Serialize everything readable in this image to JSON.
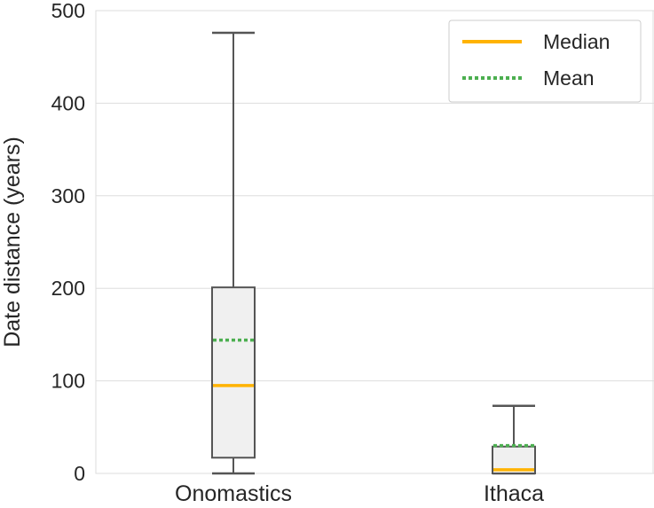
{
  "chart_data": {
    "type": "box",
    "title": "",
    "xlabel": "",
    "ylabel": "Date distance (years)",
    "ylim": [
      0,
      500
    ],
    "yticks": [
      "0",
      "100",
      "200",
      "300",
      "400",
      "500"
    ],
    "grid": true,
    "legend_position": "top-right",
    "legend": [
      {
        "label": "Median",
        "style": "solid",
        "color": "#FFB300"
      },
      {
        "label": "Mean",
        "style": "dotted",
        "color": "#4CAF50"
      }
    ],
    "categories": [
      "Onomastics",
      "Ithaca"
    ],
    "boxes": [
      {
        "name": "Onomastics",
        "min": 0,
        "q1": 17,
        "median": 95,
        "mean": 144,
        "q3": 201,
        "max": 476
      },
      {
        "name": "Ithaca",
        "min": 0,
        "q1": 0,
        "median": 4,
        "mean": 30,
        "q3": 29,
        "max": 73
      }
    ],
    "colors": {
      "box_fill": "#f0f0f0",
      "box_edge": "#555555",
      "grid": "#dddddd"
    }
  }
}
